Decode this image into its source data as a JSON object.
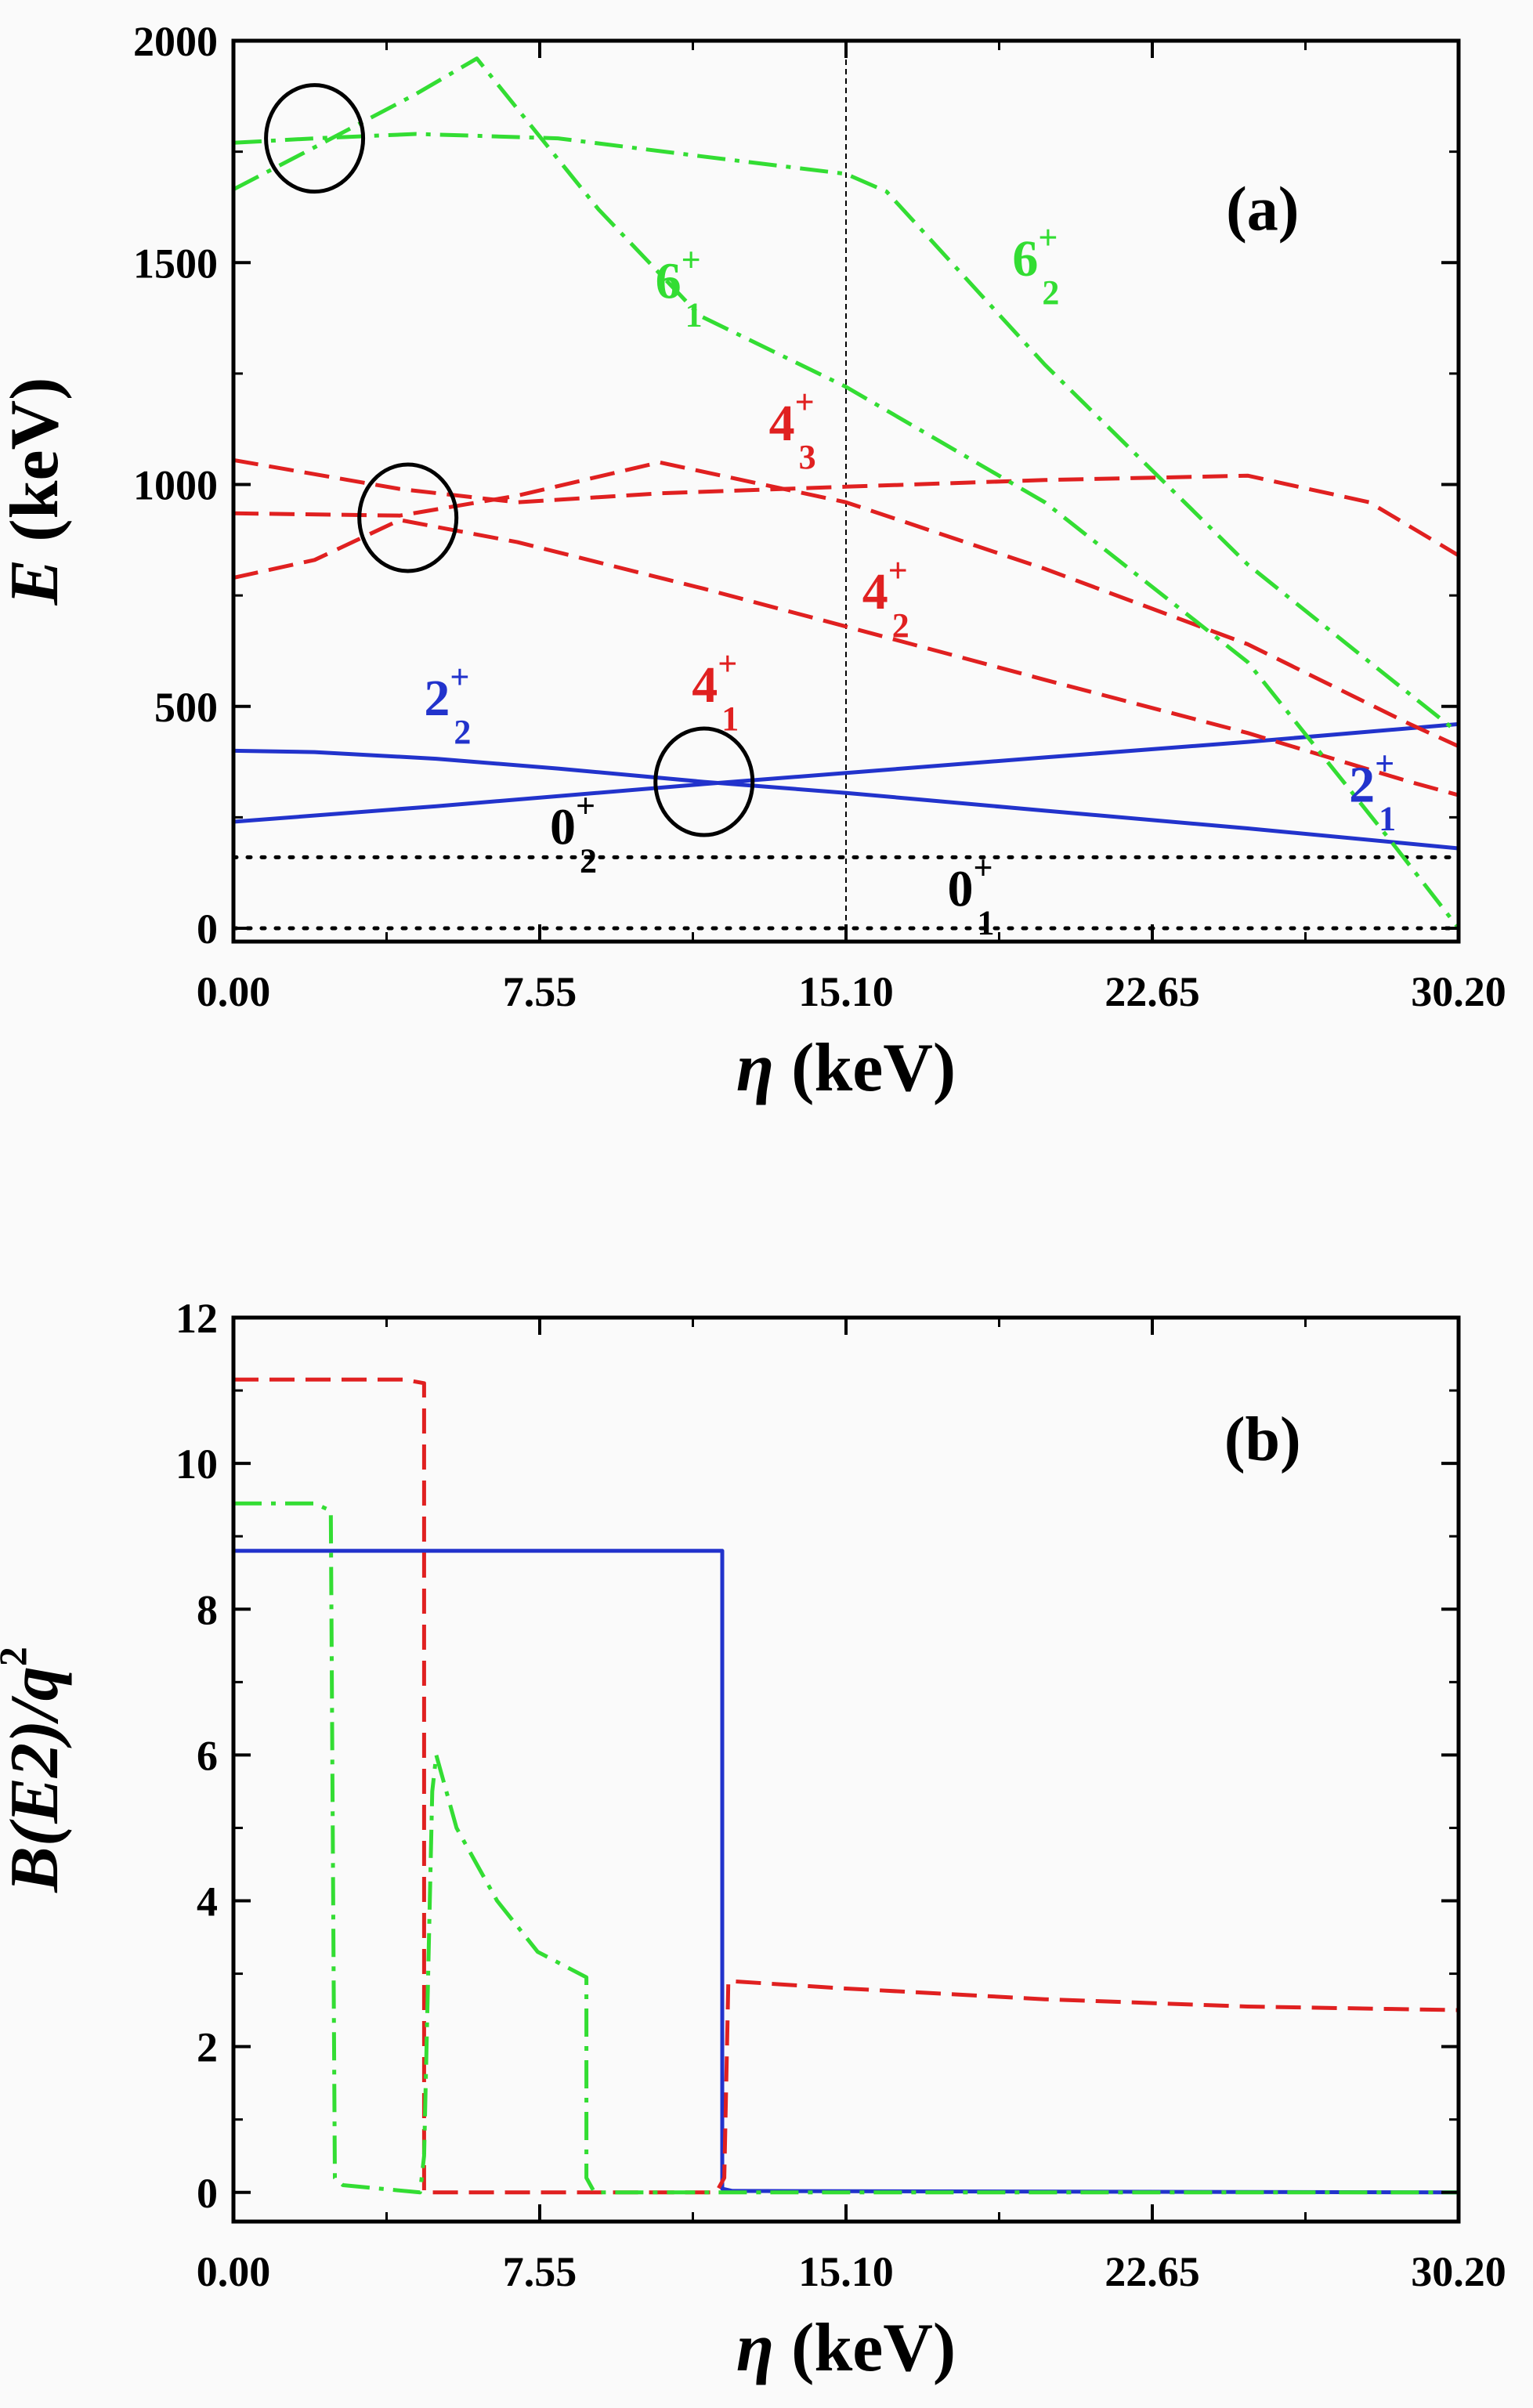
{
  "colors": {
    "blue": "#2233cc",
    "red": "#e02020",
    "green": "#33dd33",
    "black": "#000000",
    "background": "#fafafa"
  },
  "chart_data": [
    {
      "panel": "(a)",
      "type": "line",
      "xlabel_sym": "η",
      "xlabel_unit": " (keV)",
      "ylabel_sym": "E",
      "ylabel_unit": " (keV)",
      "xlim": [
        0,
        30.2
      ],
      "ylim": [
        -30,
        2000
      ],
      "xticks": [
        0,
        7.55,
        15.1,
        22.65,
        30.2
      ],
      "xtick_labels": [
        "0.00",
        "7.55",
        "15.10",
        "22.65",
        "30.20"
      ],
      "yticks": [
        0,
        500,
        1000,
        1500,
        2000
      ],
      "ytick_labels": [
        "0",
        "500",
        "1000",
        "1500",
        "2000"
      ],
      "vline_x": 15.1,
      "series": [
        {
          "style": "dot",
          "color": "black",
          "x": [
            0,
            30.2
          ],
          "y": [
            0,
            0
          ]
        },
        {
          "style": "dot",
          "color": "black",
          "x": [
            0,
            30.2
          ],
          "y": [
            160,
            160
          ]
        },
        {
          "style": "solid",
          "color": "blue",
          "x": [
            0,
            2,
            5,
            8,
            11.6,
            15.1,
            20,
            25,
            30.2
          ],
          "y": [
            400,
            397,
            382,
            360,
            330,
            305,
            265,
            225,
            180
          ]
        },
        {
          "style": "solid",
          "color": "blue",
          "x": [
            0,
            5,
            11.6,
            15.1,
            20,
            25,
            30.2
          ],
          "y": [
            240,
            275,
            325,
            350,
            385,
            420,
            460
          ]
        },
        {
          "style": "dash",
          "color": "red",
          "x": [
            0,
            2,
            4.1,
            7,
            11.6,
            15.1,
            20,
            25,
            29,
            30.2
          ],
          "y": [
            790,
            830,
            920,
            870,
            765,
            680,
            560,
            440,
            330,
            300
          ]
        },
        {
          "style": "dash",
          "color": "red",
          "x": [
            0,
            4.1,
            7,
            10.5,
            15.1,
            20,
            25,
            29,
            30.2
          ],
          "y": [
            935,
            930,
            975,
            1050,
            960,
            810,
            640,
            460,
            410
          ]
        },
        {
          "style": "dash",
          "color": "red",
          "x": [
            0,
            4.1,
            7,
            10.5,
            15.1,
            20,
            25,
            28,
            30.2
          ],
          "y": [
            1055,
            990,
            960,
            980,
            995,
            1010,
            1020,
            960,
            840
          ]
        },
        {
          "style": "dashdot",
          "color": "green",
          "x": [
            0,
            2,
            4.5,
            6,
            9,
            11.5,
            15.1,
            20,
            25,
            28.5,
            30.2
          ],
          "y": [
            1665,
            1760,
            1880,
            1960,
            1620,
            1380,
            1220,
            960,
            600,
            200,
            0
          ]
        },
        {
          "style": "dashdot",
          "color": "green",
          "x": [
            0,
            2,
            4.5,
            8,
            11.5,
            15.1,
            16.1,
            20,
            25,
            28,
            30.2
          ],
          "y": [
            1770,
            1780,
            1790,
            1780,
            1740,
            1700,
            1660,
            1270,
            820,
            600,
            440
          ]
        }
      ],
      "circles": [
        {
          "x": 2.0,
          "y": 1780
        },
        {
          "x": 4.3,
          "y": 925
        },
        {
          "x": 11.6,
          "y": 330
        }
      ],
      "state_labels": [
        {
          "base": "6",
          "sub": "1",
          "sup": "+",
          "color": "green",
          "x": 10.4,
          "y": 1420
        },
        {
          "base": "6",
          "sub": "2",
          "sup": "+",
          "color": "green",
          "x": 19.2,
          "y": 1470
        },
        {
          "base": "4",
          "sub": "3",
          "sup": "+",
          "color": "red",
          "x": 13.2,
          "y": 1100
        },
        {
          "base": "4",
          "sub": "2",
          "sup": "+",
          "color": "red",
          "x": 15.5,
          "y": 720
        },
        {
          "base": "4",
          "sub": "1",
          "sup": "+",
          "color": "red",
          "x": 11.3,
          "y": 510
        },
        {
          "base": "2",
          "sub": "2",
          "sup": "+",
          "color": "blue",
          "x": 4.7,
          "y": 480
        },
        {
          "base": "2",
          "sub": "1",
          "sup": "+",
          "color": "blue",
          "x": 27.5,
          "y": 285
        },
        {
          "base": "0",
          "sub": "2",
          "sup": "+",
          "color": "black",
          "x": 7.8,
          "y": 190
        },
        {
          "base": "0",
          "sub": "1",
          "sup": "+",
          "color": "black",
          "x": 17.6,
          "y": 50
        }
      ]
    },
    {
      "panel": "(b)",
      "type": "line",
      "xlabel_sym": "η",
      "xlabel_unit": " (keV)",
      "ylabel_text": "B(E2)/q",
      "ylabel_sup": "2",
      "xlim": [
        0,
        30.2
      ],
      "ylim": [
        -0.4,
        12
      ],
      "xticks": [
        0,
        7.55,
        15.1,
        22.65,
        30.2
      ],
      "xtick_labels": [
        "0.00",
        "7.55",
        "15.10",
        "22.65",
        "30.20"
      ],
      "yticks": [
        0,
        2,
        4,
        6,
        8,
        10,
        12
      ],
      "ytick_labels": [
        "0",
        "2",
        "4",
        "6",
        "8",
        "10",
        "12"
      ],
      "series": [
        {
          "style": "solid",
          "color": "blue",
          "x": [
            0,
            12.05,
            12.05,
            12.3,
            30.2
          ],
          "y": [
            8.8,
            8.8,
            0.05,
            0.02,
            0
          ]
        },
        {
          "style": "dash",
          "color": "red",
          "x": [
            0,
            4.2,
            4.7,
            4.7,
            11.9,
            12.1,
            12.2,
            15,
            20,
            25,
            30.2
          ],
          "y": [
            11.15,
            11.15,
            11.1,
            0,
            0,
            0.2,
            2.9,
            2.8,
            2.65,
            2.55,
            2.5
          ]
        },
        {
          "style": "dashdot",
          "color": "green",
          "x": [
            0,
            2.0,
            2.4,
            2.5,
            2.7,
            4.6,
            4.7,
            4.9,
            5.0,
            5.5,
            6.5,
            7.5,
            8.7,
            8.7,
            8.9,
            30.2
          ],
          "y": [
            9.45,
            9.45,
            9.35,
            0.2,
            0.1,
            0.0,
            0.5,
            5.5,
            6.0,
            5.0,
            4.0,
            3.3,
            2.95,
            0.2,
            0,
            0
          ]
        }
      ]
    }
  ]
}
